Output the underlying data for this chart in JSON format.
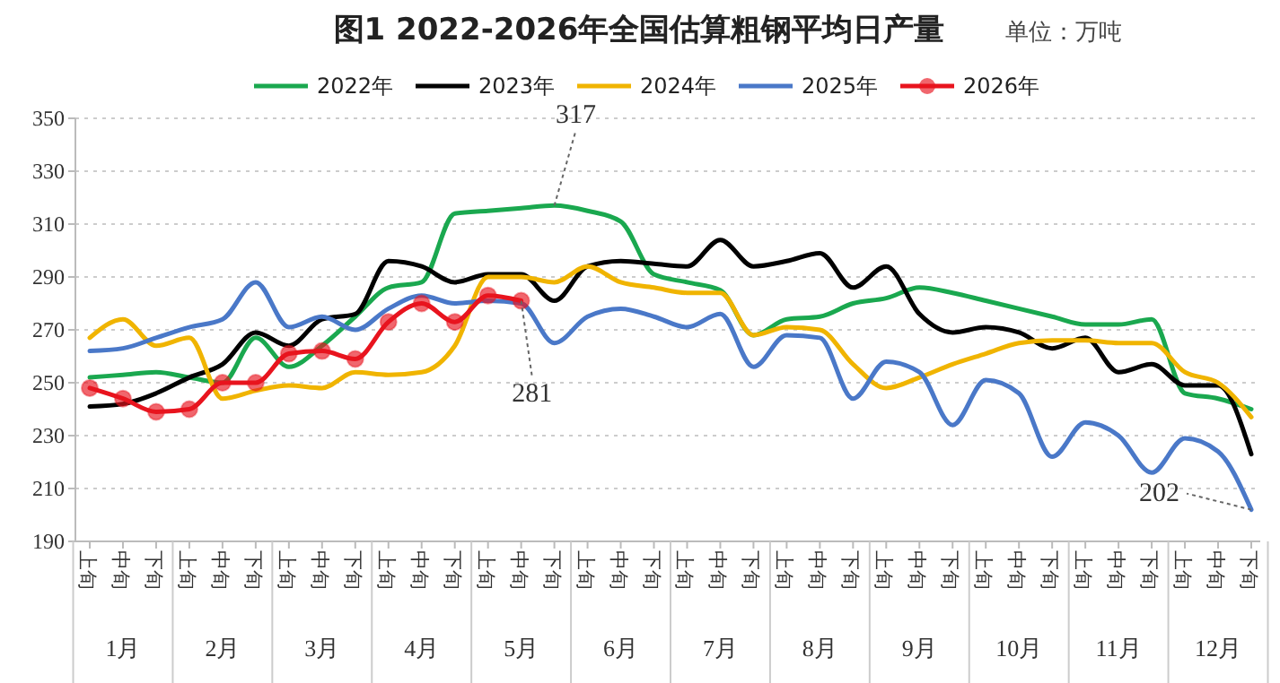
{
  "chart_data": {
    "type": "line",
    "title": "图1  2022-2026年全国估算粗钢平均日产量",
    "subtitle": "单位：万吨",
    "categories": [
      "上旬",
      "中旬",
      "下旬",
      "上旬",
      "中旬",
      "下旬",
      "上旬",
      "中旬",
      "下旬",
      "上旬",
      "中旬",
      "下旬",
      "上旬",
      "中旬",
      "下旬",
      "上旬",
      "中旬",
      "下旬",
      "上旬",
      "中旬",
      "下旬",
      "上旬",
      "中旬",
      "下旬",
      "上旬",
      "中旬",
      "下旬",
      "上旬",
      "中旬",
      "下旬",
      "上旬",
      "中旬",
      "下旬",
      "上旬",
      "中旬",
      "下旬"
    ],
    "annotations": [
      "1月",
      "2月",
      "3月",
      "4月",
      "5月",
      "6月",
      "7月",
      "8月",
      "9月",
      "10月",
      "11月",
      "12月"
    ],
    "series": [
      {
        "name": "2022年",
        "color": "#1aa84f",
        "values": [
          252,
          253,
          254,
          252,
          250,
          267,
          256,
          264,
          275,
          286,
          288,
          314,
          315,
          316,
          317,
          315,
          311,
          291,
          288,
          285,
          268,
          274,
          275,
          280,
          282,
          286,
          284,
          281,
          278,
          275,
          272,
          272,
          274,
          246,
          244,
          240
        ],
        "value_labels": [
          null,
          null,
          null,
          null,
          null,
          null,
          null,
          null,
          null,
          null,
          null,
          null,
          null,
          null,
          "317",
          null,
          null,
          null,
          null,
          null,
          null,
          null,
          null,
          null,
          null,
          null,
          null,
          null,
          null,
          null,
          null,
          null,
          null,
          null,
          null,
          null
        ]
      },
      {
        "name": "2023年",
        "color": "#000000",
        "values": [
          241,
          242,
          246,
          252,
          257,
          269,
          264,
          274,
          276,
          296,
          294,
          288,
          291,
          291,
          281,
          294,
          296,
          295,
          294,
          304,
          294,
          296,
          299,
          286,
          294,
          276,
          269,
          271,
          269,
          263,
          267,
          254,
          257,
          249,
          249,
          223
        ]
      },
      {
        "name": "2024年",
        "color": "#f0b400",
        "values": [
          267,
          274,
          264,
          267,
          244,
          247,
          249,
          248,
          254,
          253,
          254,
          264,
          290,
          290,
          288,
          294,
          288,
          286,
          284,
          284,
          268,
          271,
          270,
          257,
          248,
          252,
          257,
          261,
          265,
          266,
          266,
          265,
          265,
          254,
          250,
          237
        ]
      },
      {
        "name": "2025年",
        "color": "#4a78c8",
        "values": [
          262,
          263,
          267,
          271,
          274,
          288,
          271,
          275,
          270,
          278,
          283,
          280,
          281,
          280,
          265,
          275,
          278,
          275,
          271,
          276,
          256,
          268,
          267,
          244,
          258,
          254,
          234,
          251,
          246,
          222,
          235,
          230,
          216,
          229,
          224,
          202
        ],
        "value_labels": [
          null,
          null,
          null,
          null,
          null,
          null,
          null,
          null,
          null,
          null,
          null,
          null,
          null,
          null,
          null,
          null,
          null,
          null,
          null,
          null,
          null,
          null,
          null,
          null,
          null,
          null,
          null,
          null,
          null,
          null,
          null,
          null,
          null,
          null,
          null,
          "202"
        ]
      },
      {
        "name": "2026年",
        "color": "#e8141e",
        "marker": "circle",
        "values": [
          248,
          244,
          239,
          240,
          250,
          250,
          261,
          262,
          259,
          273,
          280,
          273,
          283,
          281,
          null,
          null,
          null,
          null,
          null,
          null,
          null,
          null,
          null,
          null,
          null,
          null,
          null,
          null,
          null,
          null,
          null,
          null,
          null,
          null,
          null,
          null
        ],
        "value_labels": [
          null,
          null,
          null,
          null,
          null,
          null,
          null,
          null,
          null,
          null,
          null,
          null,
          null,
          "281",
          null,
          null,
          null,
          null,
          null,
          null,
          null,
          null,
          null,
          null,
          null,
          null,
          null,
          null,
          null,
          null,
          null,
          null,
          null,
          null,
          null,
          null
        ]
      }
    ],
    "ylim": [
      190,
      350
    ],
    "yticks": [
      190,
      210,
      230,
      250,
      270,
      290,
      310,
      330,
      350
    ],
    "grid": "y",
    "legend": "top",
    "marker": "none"
  }
}
